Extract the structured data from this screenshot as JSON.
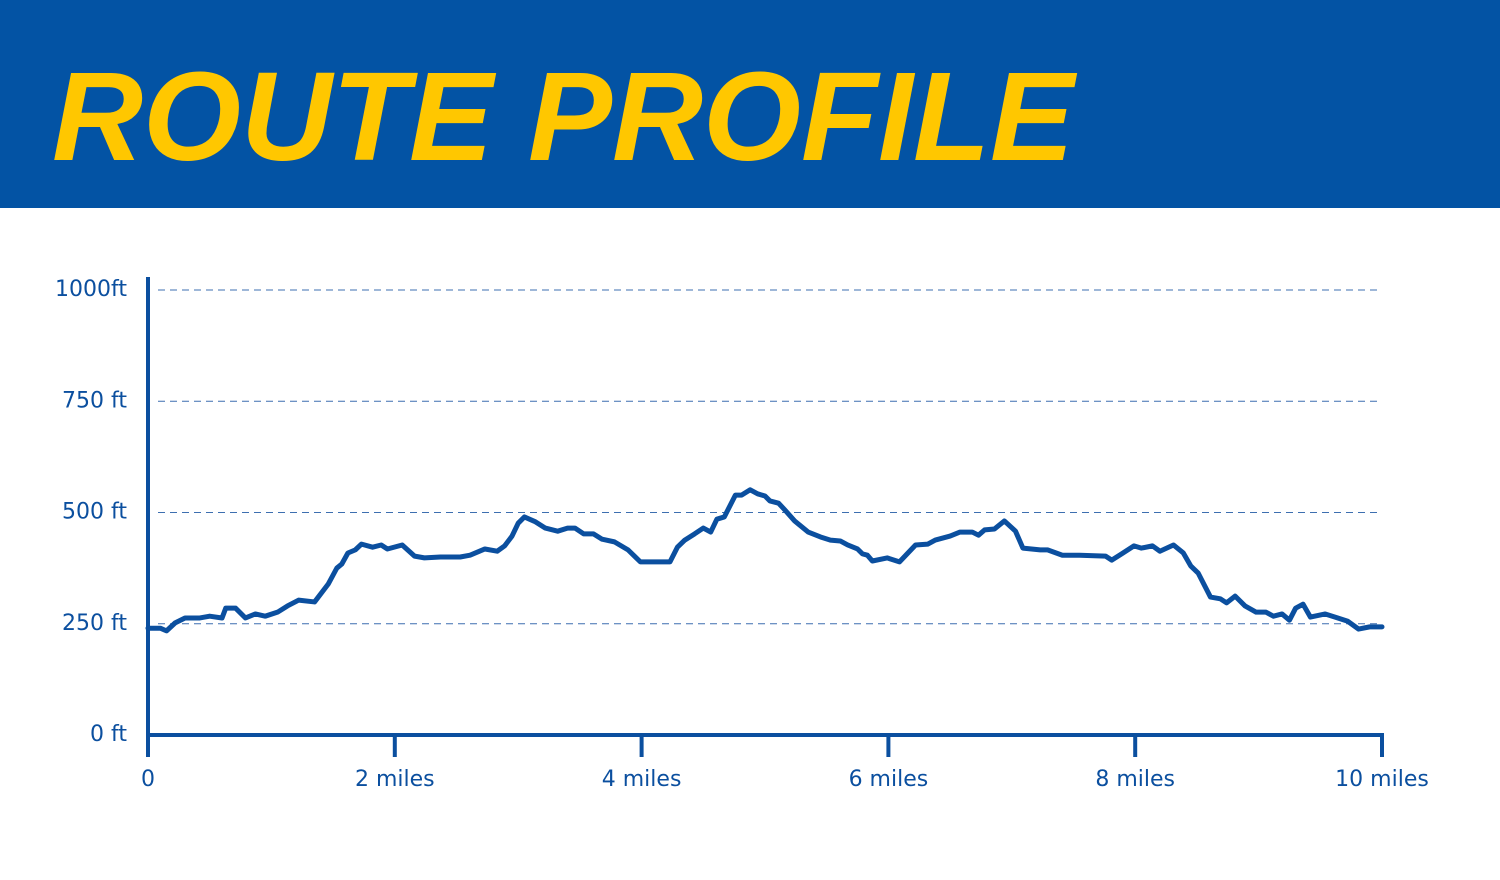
{
  "chart_data": {
    "type": "line",
    "title": "ROUTE PROFILE",
    "x": [
      0,
      0.1,
      0.15,
      0.22,
      0.3,
      0.42,
      0.5,
      0.6,
      0.63,
      0.71,
      0.79,
      0.87,
      0.95,
      1.05,
      1.13,
      1.22,
      1.35,
      1.46,
      1.53,
      1.57,
      1.62,
      1.68,
      1.73,
      1.82,
      1.89,
      1.94,
      2.06,
      2.16,
      2.24,
      2.37,
      2.53,
      2.61,
      2.73,
      2.83,
      2.89,
      2.95,
      3.0,
      3.05,
      3.14,
      3.22,
      3.32,
      3.4,
      3.46,
      3.53,
      3.61,
      3.68,
      3.78,
      3.89,
      3.99,
      4.08,
      4.23,
      4.29,
      4.35,
      4.43,
      4.5,
      4.56,
      4.61,
      4.67,
      4.76,
      4.81,
      4.88,
      4.94,
      5.0,
      5.04,
      5.11,
      5.16,
      5.24,
      5.35,
      5.45,
      5.53,
      5.61,
      5.67,
      5.75,
      5.79,
      5.83,
      5.87,
      5.99,
      6.09,
      6.22,
      6.32,
      6.38,
      6.5,
      6.58,
      6.68,
      6.73,
      6.78,
      6.86,
      6.94,
      7.03,
      7.09,
      7.23,
      7.29,
      7.41,
      7.55,
      7.76,
      7.81,
      7.89,
      7.99,
      8.05,
      8.14,
      8.2,
      8.31,
      8.39,
      8.45,
      8.51,
      8.61,
      8.69,
      8.74,
      8.81,
      8.89,
      8.98,
      9.06,
      9.12,
      9.19,
      9.25,
      9.3,
      9.36,
      9.42,
      9.54,
      9.62,
      9.72,
      9.81,
      9.9,
      10.0
    ],
    "values": [
      240,
      240,
      234,
      252,
      263,
      263,
      267,
      263,
      285,
      285,
      263,
      272,
      267,
      276,
      290,
      303,
      299,
      339,
      375,
      384,
      409,
      416,
      429,
      422,
      427,
      418,
      427,
      402,
      398,
      400,
      400,
      404,
      418,
      413,
      425,
      447,
      476,
      490,
      479,
      465,
      458,
      465,
      465,
      452,
      452,
      440,
      434,
      416,
      389,
      389,
      389,
      422,
      438,
      452,
      465,
      456,
      485,
      490,
      539,
      539,
      551,
      542,
      537,
      526,
      521,
      506,
      481,
      456,
      445,
      438,
      436,
      427,
      418,
      407,
      404,
      391,
      398,
      389,
      427,
      429,
      438,
      447,
      456,
      456,
      449,
      461,
      463,
      481,
      458,
      420,
      416,
      416,
      404,
      404,
      402,
      393,
      407,
      425,
      420,
      425,
      413,
      427,
      409,
      380,
      364,
      310,
      306,
      297,
      312,
      290,
      276,
      276,
      267,
      272,
      258,
      285,
      294,
      265,
      272,
      265,
      256,
      238,
      243,
      243
    ],
    "color": "#0b4f9f",
    "xlim": [
      0,
      10
    ],
    "xticks": [
      0,
      {
        "value": 2,
        "label": "2 miles"
      },
      {
        "value": 4,
        "label": "4 miles"
      },
      {
        "value": 6,
        "label": "6 miles"
      },
      {
        "value": 8,
        "label": "8 miles"
      },
      {
        "value": 10,
        "label": "10 miles"
      }
    ],
    "ylim": [
      0,
      1000
    ],
    "yticks": [
      {
        "value": 0,
        "label": "0 ft"
      },
      {
        "value": 250,
        "label": "250 ft"
      },
      {
        "value": 500,
        "label": "500 ft"
      },
      {
        "value": 750,
        "label": "750 ft"
      },
      {
        "value": 1000,
        "label": "1000ft"
      }
    ],
    "grid": true
  }
}
